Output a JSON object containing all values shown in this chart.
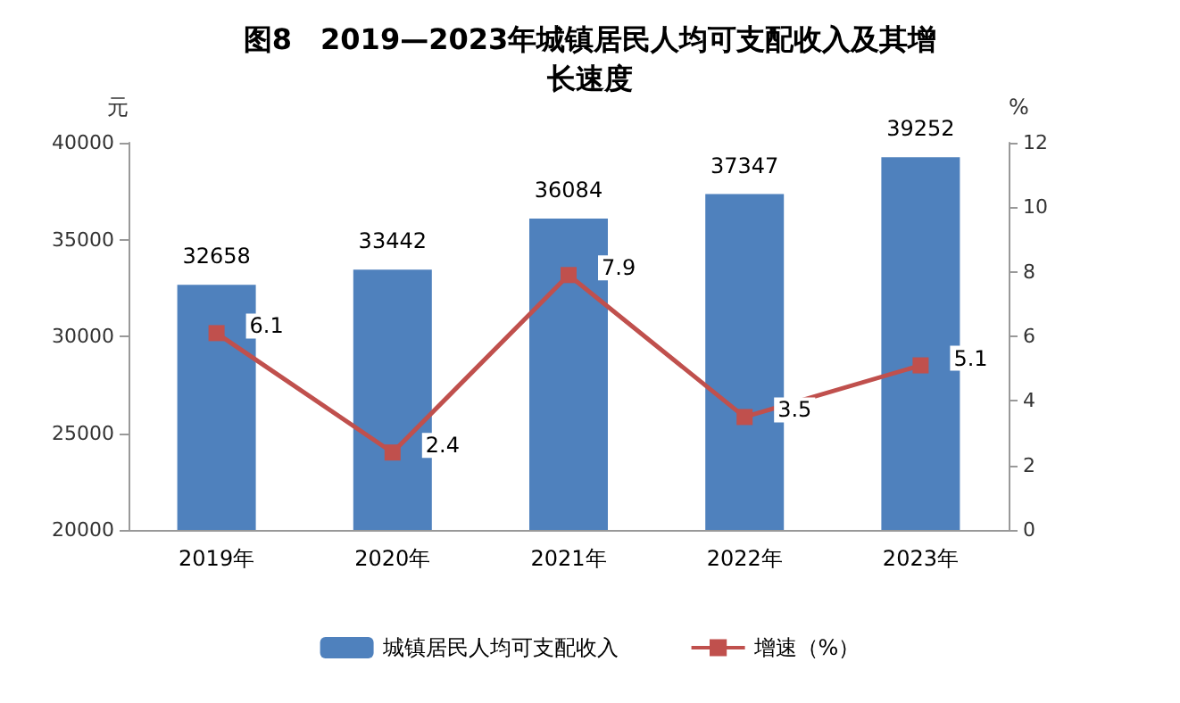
{
  "chart_data": {
    "type": "bar",
    "title": "图8　2019—2023年城镇居民人均可支配收入及其增长速度",
    "categories": [
      "2019年",
      "2020年",
      "2021年",
      "2022年",
      "2023年"
    ],
    "series": [
      {
        "name": "城镇居民人均可支配收入",
        "color": "#4f81bd",
        "values": [
          32658,
          33442,
          36084,
          37347,
          39252
        ]
      },
      {
        "name": "增速（%）",
        "type": "line",
        "axis": "y2",
        "color": "#c0504d",
        "marker": "square",
        "values": [
          6.1,
          2.4,
          7.9,
          3.5,
          5.1
        ]
      }
    ],
    "ylabel": "元",
    "y2label": "%",
    "ylim": [
      20000,
      40000
    ],
    "yticks": [
      20000,
      25000,
      30000,
      35000,
      40000
    ],
    "y2lim": [
      0,
      12
    ],
    "y2ticks": [
      0,
      2,
      4,
      6,
      8,
      10,
      12
    ],
    "data_labels": true,
    "grid": false,
    "legend": "bottom"
  }
}
